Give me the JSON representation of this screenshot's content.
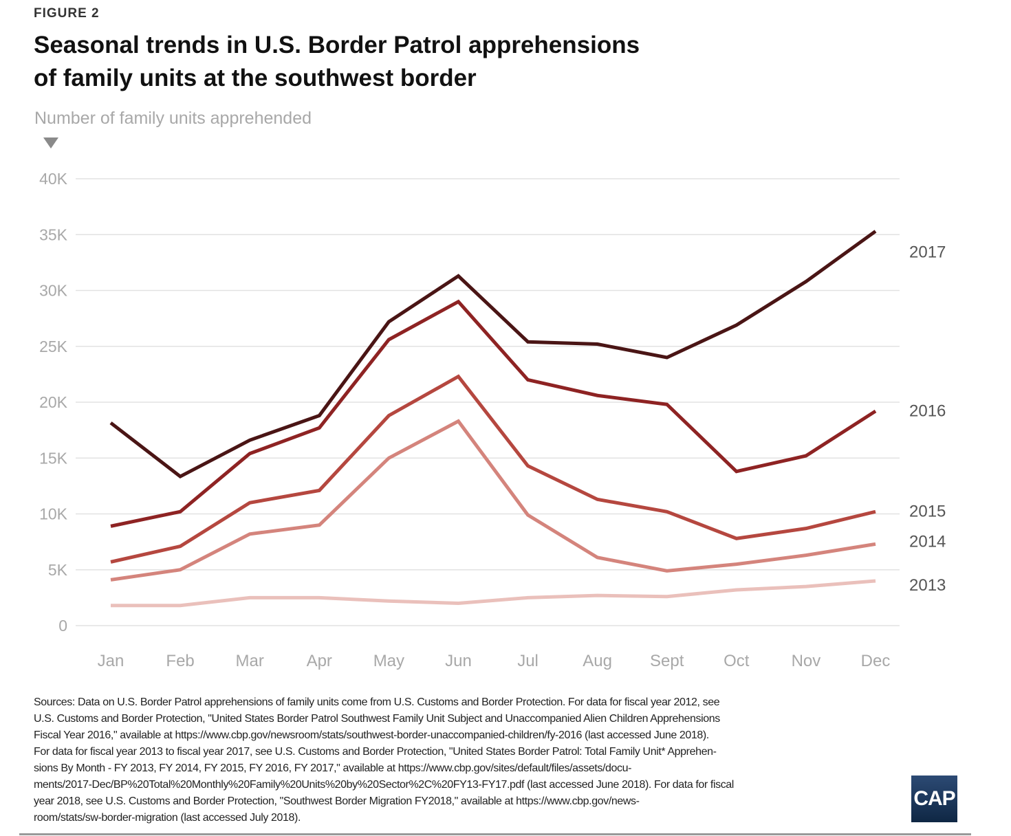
{
  "figure_label": "FIGURE 2",
  "title_lines": [
    "Seasonal trends in U.S. Border Patrol apprehensions",
    "of family units at the southwest border"
  ],
  "chart_data": {
    "type": "line",
    "title": "Seasonal trends in U.S. Border Patrol apprehensions of family units at the southwest border",
    "ylabel": "Number of family units apprehended",
    "xlabel": "",
    "categories": [
      "Jan",
      "Feb",
      "Mar",
      "Apr",
      "May",
      "Jun",
      "Jul",
      "Aug",
      "Sept",
      "Oct",
      "Nov",
      "Dec"
    ],
    "ylim": [
      0,
      40000
    ],
    "yticks": [
      0,
      5000,
      10000,
      15000,
      20000,
      25000,
      30000,
      35000,
      40000
    ],
    "ytick_labels": [
      "0",
      "5K",
      "10K",
      "15K",
      "20K",
      "25K",
      "30K",
      "35K",
      "40K"
    ],
    "grid": true,
    "legend": "direct labels at right",
    "series": [
      {
        "name": "2013",
        "color": "#eac0bb",
        "values": [
          1800,
          1800,
          2500,
          2500,
          2200,
          2000,
          2500,
          2700,
          2600,
          3200,
          3500,
          4000
        ]
      },
      {
        "name": "2014",
        "color": "#d4847c",
        "values": [
          4100,
          5000,
          8200,
          9000,
          15000,
          18300,
          9900,
          6100,
          4900,
          5500,
          6300,
          7300
        ]
      },
      {
        "name": "2015",
        "color": "#b5473f",
        "values": [
          5700,
          7100,
          11000,
          12100,
          18800,
          22300,
          14300,
          11300,
          10200,
          7800,
          8700,
          10200
        ]
      },
      {
        "name": "2016",
        "color": "#8e2323",
        "values": [
          8900,
          10200,
          15400,
          17700,
          25600,
          29000,
          22000,
          20600,
          19800,
          13800,
          15200,
          19200
        ]
      },
      {
        "name": "2017",
        "color": "#4a1515",
        "values": [
          18150,
          13350,
          16600,
          18800,
          27200,
          31300,
          25400,
          25200,
          24000,
          26900,
          30800,
          35300
        ]
      }
    ],
    "series_label_positions": {
      "2017": 33500,
      "2016": 19300,
      "2015": 10300,
      "2014": 7600,
      "2013": 3700
    }
  },
  "sources_lines": [
    "Sources: Data on U.S. Border Patrol apprehensions of family units come from U.S. Customs and Border Protection. For data for fiscal year 2012, see",
    "U.S. Customs and Border Protection, \"United States Border Patrol Southwest Family Unit Subject and Unaccompanied Alien Children Apprehensions",
    "Fiscal Year 2016,\" available at https://www.cbp.gov/newsroom/stats/southwest-border-unaccompanied-children/fy-2016 (last accessed June 2018).",
    "For data for fiscal year 2013 to fiscal year 2017, see U.S. Customs and Border Protection, \"United States Border Patrol: Total Family Unit* Apprehen-",
    "sions By Month - FY 2013, FY 2014, FY 2015, FY 2016, FY 2017,\" available at https://www.cbp.gov/sites/default/files/assets/docu-",
    "ments/2017-Dec/BP%20Total%20Monthly%20Family%20Units%20by%20Sector%2C%20FY13-FY17.pdf (last accessed June 2018). For data for fiscal",
    "year 2018, see U.S. Customs and Border Protection, \"Southwest Border Migration FY2018,\" available at https://www.cbp.gov/news-",
    "room/stats/sw-border-migration (last accessed July 2018)."
  ],
  "logo_text": "CAP"
}
